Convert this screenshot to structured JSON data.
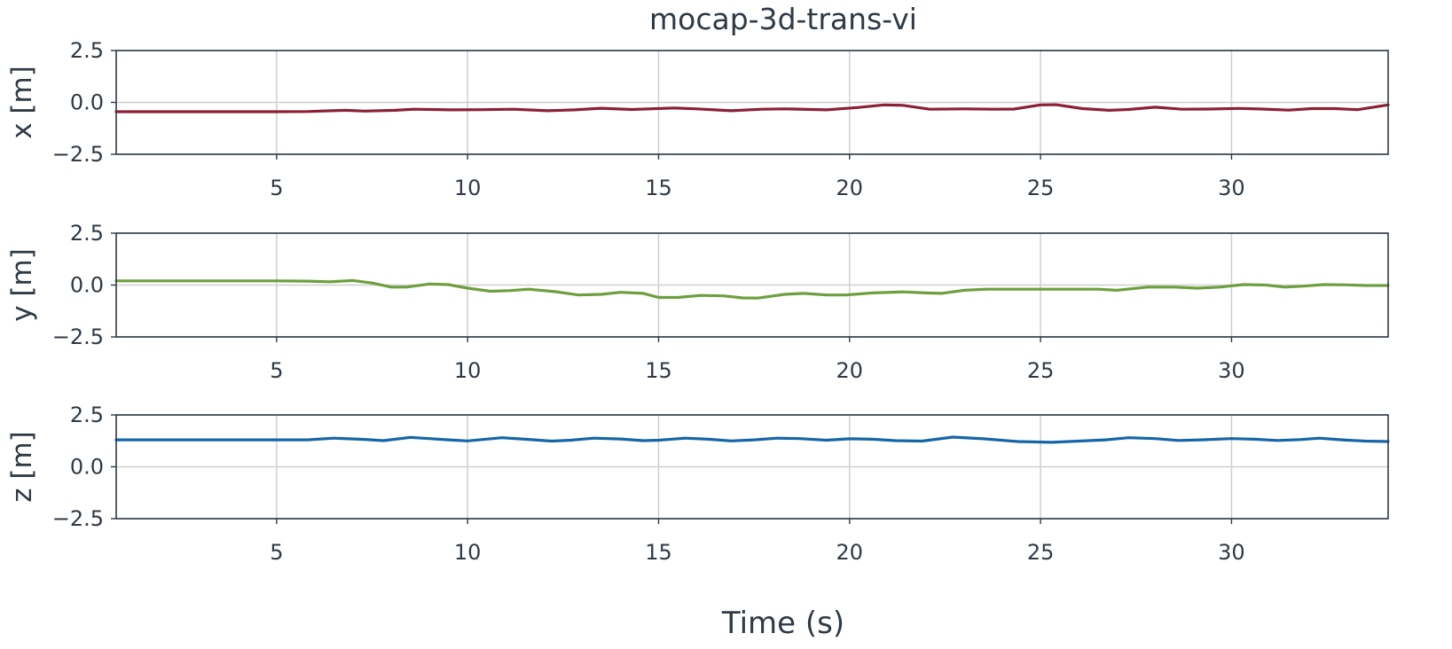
{
  "chart_data": {
    "type": "line",
    "title": "mocap-3d-trans-vi",
    "xlabel": "Time (s)",
    "xlim": [
      0.8,
      34.1
    ],
    "xticks": [
      5,
      10,
      15,
      20,
      25,
      30
    ],
    "grid": true,
    "panels": [
      {
        "id": "x",
        "ylabel": "x [m]",
        "ylim": [
          -2.5,
          2.5
        ],
        "yticks": [
          -2.5,
          0.0,
          2.5
        ],
        "ytick_labels": [
          "−2.5",
          "0.0",
          "2.5"
        ],
        "xtick_labels": [
          "5",
          "10",
          "15",
          "20",
          "25",
          "30"
        ],
        "series": [
          {
            "color": "#8b2035",
            "x": [
              0.8,
              2,
              3,
              4,
              5,
              5.8,
              6.8,
              7.3,
              8.1,
              8.6,
              9.6,
              10.4,
              11.2,
              12.1,
              12.8,
              13.5,
              14.3,
              15.4,
              16.0,
              16.9,
              17.7,
              18.3,
              19.4,
              20.2,
              20.9,
              21.4,
              22.1,
              23.0,
              23.8,
              24.3,
              25.0,
              25.4,
              26.1,
              26.8,
              27.3,
              28.0,
              28.7,
              29.4,
              30.2,
              30.8,
              31.5,
              32.1,
              32.7,
              33.3,
              34.1
            ],
            "y": [
              -0.45,
              -0.45,
              -0.45,
              -0.45,
              -0.45,
              -0.44,
              -0.38,
              -0.42,
              -0.38,
              -0.33,
              -0.36,
              -0.35,
              -0.33,
              -0.4,
              -0.36,
              -0.28,
              -0.34,
              -0.27,
              -0.31,
              -0.4,
              -0.33,
              -0.31,
              -0.36,
              -0.25,
              -0.12,
              -0.14,
              -0.33,
              -0.31,
              -0.33,
              -0.32,
              -0.12,
              -0.11,
              -0.3,
              -0.38,
              -0.34,
              -0.23,
              -0.33,
              -0.32,
              -0.29,
              -0.32,
              -0.37,
              -0.3,
              -0.3,
              -0.35,
              -0.12
            ]
          }
        ]
      },
      {
        "id": "y",
        "ylabel": "y [m]",
        "ylim": [
          -2.5,
          2.5
        ],
        "yticks": [
          -2.5,
          0.0,
          2.5
        ],
        "ytick_labels": [
          "−2.5",
          "0.0",
          "2.5"
        ],
        "xtick_labels": [
          "5",
          "10",
          "15",
          "20",
          "25",
          "30"
        ],
        "series": [
          {
            "color": "#6e9f3e",
            "x": [
              0.8,
              2,
              3,
              4,
              5,
              5.8,
              6.4,
              7.0,
              7.5,
              8.0,
              8.4,
              9.0,
              9.5,
              10.0,
              10.6,
              11.1,
              11.6,
              12.3,
              12.9,
              13.5,
              14.0,
              14.6,
              15.0,
              15.5,
              16.1,
              16.7,
              17.2,
              17.6,
              18.3,
              18.8,
              19.4,
              19.9,
              20.6,
              21.4,
              22.0,
              22.4,
              23.0,
              23.6,
              24.5,
              25.2,
              26.0,
              26.5,
              27.0,
              27.8,
              28.5,
              29.1,
              29.7,
              30.3,
              30.9,
              31.4,
              31.9,
              32.4,
              33.0,
              33.5,
              34.1
            ],
            "y": [
              0.2,
              0.2,
              0.2,
              0.2,
              0.2,
              0.19,
              0.16,
              0.22,
              0.1,
              -0.1,
              -0.1,
              0.05,
              0.02,
              -0.15,
              -0.3,
              -0.27,
              -0.2,
              -0.32,
              -0.48,
              -0.45,
              -0.35,
              -0.4,
              -0.6,
              -0.6,
              -0.5,
              -0.52,
              -0.62,
              -0.63,
              -0.45,
              -0.4,
              -0.48,
              -0.48,
              -0.38,
              -0.33,
              -0.38,
              -0.4,
              -0.25,
              -0.2,
              -0.2,
              -0.2,
              -0.2,
              -0.2,
              -0.25,
              -0.1,
              -0.1,
              -0.15,
              -0.1,
              0.02,
              0.0,
              -0.1,
              -0.05,
              0.02,
              0.01,
              -0.02,
              -0.02
            ]
          }
        ]
      },
      {
        "id": "z",
        "ylabel": "z [m]",
        "ylim": [
          -2.5,
          2.5
        ],
        "yticks": [
          -2.5,
          0.0,
          2.5
        ],
        "ytick_labels": [
          "−2.5",
          "0.0",
          "2.5"
        ],
        "xtick_labels": [
          "5",
          "10",
          "15",
          "20",
          "25",
          "30"
        ],
        "series": [
          {
            "color": "#1566a8",
            "x": [
              0.8,
              2,
              3,
              4,
              5,
              5.8,
              6.5,
              7.3,
              7.8,
              8.5,
              9.0,
              9.5,
              10.0,
              10.9,
              11.5,
              12.2,
              12.7,
              13.3,
              14.0,
              14.6,
              15.0,
              15.7,
              16.3,
              16.9,
              17.5,
              18.1,
              18.7,
              19.4,
              20.0,
              20.6,
              21.2,
              21.9,
              22.7,
              23.5,
              24.4,
              25.3,
              26.0,
              26.7,
              27.3,
              28.0,
              28.6,
              29.2,
              30.0,
              30.6,
              31.2,
              31.8,
              32.3,
              32.9,
              33.5,
              34.1
            ],
            "y": [
              1.3,
              1.3,
              1.3,
              1.3,
              1.3,
              1.3,
              1.38,
              1.32,
              1.26,
              1.42,
              1.36,
              1.3,
              1.25,
              1.4,
              1.33,
              1.24,
              1.28,
              1.38,
              1.34,
              1.26,
              1.28,
              1.38,
              1.33,
              1.25,
              1.3,
              1.38,
              1.36,
              1.28,
              1.35,
              1.33,
              1.26,
              1.24,
              1.43,
              1.35,
              1.22,
              1.18,
              1.24,
              1.3,
              1.4,
              1.36,
              1.27,
              1.3,
              1.36,
              1.33,
              1.27,
              1.31,
              1.38,
              1.3,
              1.24,
              1.22
            ]
          }
        ]
      }
    ]
  }
}
